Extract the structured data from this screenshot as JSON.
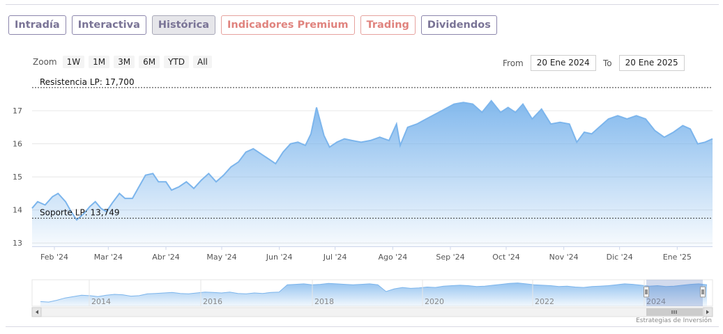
{
  "tabs": [
    {
      "label": "Intradía",
      "style": "normal"
    },
    {
      "label": "Interactiva",
      "style": "normal"
    },
    {
      "label": "Histórica",
      "style": "active"
    },
    {
      "label": "Indicadores Premium",
      "style": "premium"
    },
    {
      "label": "Trading",
      "style": "premium"
    },
    {
      "label": "Dividendos",
      "style": "normal"
    }
  ],
  "zoom": {
    "label": "Zoom",
    "buttons": [
      "1W",
      "1M",
      "3M",
      "6M",
      "YTD",
      "All"
    ]
  },
  "range": {
    "from_label": "From",
    "from_value": "20 Ene 2024",
    "to_label": "To",
    "to_value": "20 Ene 2025"
  },
  "credit": "Estrategias de Inversión",
  "colors": {
    "line": "#7cb5ec",
    "tab_border": "#8c86ac",
    "premium": "#e0837e"
  },
  "chart_data": {
    "type": "area",
    "ylim": [
      12.9,
      17.95
    ],
    "yticks": [
      13,
      14,
      15,
      16,
      17
    ],
    "x_start": "2024-01-20",
    "x_end": "2025-01-20",
    "xticks": [
      {
        "label": "Feb '24",
        "date": "2024-02-01"
      },
      {
        "label": "Mar '24",
        "date": "2024-03-01"
      },
      {
        "label": "Abr '24",
        "date": "2024-04-01"
      },
      {
        "label": "May '24",
        "date": "2024-05-01"
      },
      {
        "label": "Jun '24",
        "date": "2024-06-01"
      },
      {
        "label": "Jul '24",
        "date": "2024-07-01"
      },
      {
        "label": "Ago '24",
        "date": "2024-08-01"
      },
      {
        "label": "Sep '24",
        "date": "2024-09-01"
      },
      {
        "label": "Oct '24",
        "date": "2024-10-01"
      },
      {
        "label": "Nov '24",
        "date": "2024-11-01"
      },
      {
        "label": "Dic '24",
        "date": "2024-12-01"
      },
      {
        "label": "Ene '25",
        "date": "2025-01-01"
      }
    ],
    "plot_lines": [
      {
        "label": "Resistencia LP: 17,700",
        "value": 17.7
      },
      {
        "label": "Soporte LP: 13,749",
        "value": 13.749
      }
    ],
    "series": [
      {
        "x": [
          "2024-01-20",
          "2024-01-23",
          "2024-01-27",
          "2024-01-31",
          "2024-02-03",
          "2024-02-07",
          "2024-02-10",
          "2024-02-13",
          "2024-02-17",
          "2024-02-20",
          "2024-02-23",
          "2024-02-26",
          "2024-02-29",
          "2024-03-03",
          "2024-03-07",
          "2024-03-10",
          "2024-03-14",
          "2024-03-17",
          "2024-03-21",
          "2024-03-25",
          "2024-03-28",
          "2024-04-01",
          "2024-04-04",
          "2024-04-08",
          "2024-04-12",
          "2024-04-16",
          "2024-04-20",
          "2024-04-24",
          "2024-04-28",
          "2024-05-02",
          "2024-05-06",
          "2024-05-10",
          "2024-05-14",
          "2024-05-18",
          "2024-05-22",
          "2024-05-26",
          "2024-05-30",
          "2024-06-03",
          "2024-06-07",
          "2024-06-11",
          "2024-06-15",
          "2024-06-18",
          "2024-06-21",
          "2024-06-25",
          "2024-06-28",
          "2024-07-02",
          "2024-07-06",
          "2024-07-10",
          "2024-07-15",
          "2024-07-20",
          "2024-07-25",
          "2024-07-30",
          "2024-08-03",
          "2024-08-05",
          "2024-08-09",
          "2024-08-14",
          "2024-08-19",
          "2024-08-24",
          "2024-08-29",
          "2024-09-03",
          "2024-09-08",
          "2024-09-13",
          "2024-09-18",
          "2024-09-23",
          "2024-09-28",
          "2024-10-02",
          "2024-10-06",
          "2024-10-10",
          "2024-10-15",
          "2024-10-20",
          "2024-10-25",
          "2024-10-30",
          "2024-11-04",
          "2024-11-08",
          "2024-11-12",
          "2024-11-16",
          "2024-11-20",
          "2024-11-25",
          "2024-11-30",
          "2024-12-05",
          "2024-12-10",
          "2024-12-15",
          "2024-12-20",
          "2024-12-25",
          "2024-12-30",
          "2025-01-04",
          "2025-01-08",
          "2025-01-12",
          "2025-01-16",
          "2025-01-20"
        ],
        "values": [
          14.05,
          14.25,
          14.15,
          14.4,
          14.5,
          14.25,
          13.95,
          13.7,
          13.9,
          14.1,
          14.25,
          14.05,
          13.95,
          14.2,
          14.5,
          14.35,
          14.35,
          14.65,
          15.05,
          15.1,
          14.85,
          14.85,
          14.6,
          14.7,
          14.85,
          14.65,
          14.9,
          15.1,
          14.85,
          15.05,
          15.3,
          15.45,
          15.75,
          15.85,
          15.7,
          15.55,
          15.4,
          15.75,
          16.0,
          16.05,
          15.95,
          16.3,
          17.1,
          16.25,
          15.9,
          16.05,
          16.15,
          16.1,
          16.05,
          16.1,
          16.2,
          16.1,
          16.6,
          15.95,
          16.5,
          16.6,
          16.75,
          16.9,
          17.05,
          17.2,
          17.25,
          17.2,
          16.95,
          17.3,
          16.95,
          17.1,
          16.95,
          17.2,
          16.75,
          17.05,
          16.6,
          16.65,
          16.6,
          16.05,
          16.35,
          16.3,
          16.5,
          16.75,
          16.85,
          16.75,
          16.85,
          16.75,
          16.4,
          16.2,
          16.35,
          16.55,
          16.45,
          16.0,
          16.05,
          16.15
        ]
      }
    ]
  },
  "navigator": {
    "years": [
      "2014",
      "2016",
      "2018",
      "2020",
      "2022",
      "2024"
    ],
    "values": [
      13.5,
      13.4,
      13.8,
      14.3,
      14.6,
      14.9,
      14.8,
      14.6,
      14.9,
      15.1,
      15.0,
      14.7,
      14.8,
      15.2,
      15.3,
      15.4,
      15.5,
      15.3,
      15.2,
      15.4,
      15.6,
      15.5,
      15.4,
      15.6,
      15.3,
      15.2,
      15.4,
      15.3,
      15.5,
      15.6,
      17.2,
      17.3,
      17.4,
      17.2,
      17.3,
      17.5,
      17.4,
      17.3,
      17.2,
      17.3,
      17.4,
      17.2,
      15.7,
      16.3,
      16.6,
      16.4,
      16.5,
      16.7,
      16.6,
      16.9,
      17.0,
      17.1,
      17.0,
      16.8,
      16.9,
      17.1,
      17.3,
      17.5,
      17.6,
      17.4,
      17.2,
      17.1,
      17.0,
      16.8,
      16.9,
      16.7,
      16.6,
      16.8,
      16.9,
      17.0,
      17.2,
      17.4,
      17.3,
      17.1,
      16.9,
      17.0,
      16.8,
      16.9,
      17.1,
      17.3,
      17.4,
      17.2
    ]
  }
}
